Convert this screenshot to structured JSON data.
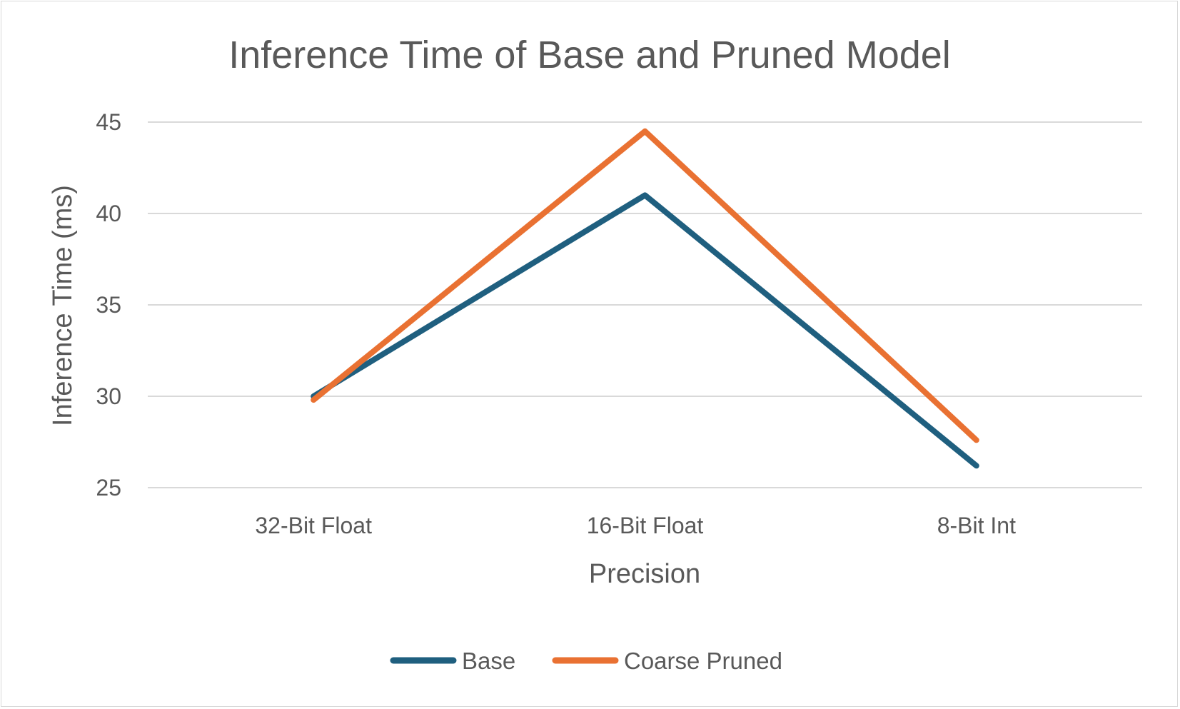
{
  "chart_data": {
    "type": "line",
    "title": "Inference Time of Base and Pruned Model",
    "xlabel": "Precision",
    "ylabel": "Inference Time (ms)",
    "categories": [
      "32-Bit Float",
      "16-Bit Float",
      "8-Bit Int"
    ],
    "yticks": [
      25,
      30,
      35,
      40,
      45
    ],
    "ylim": [
      25,
      45
    ],
    "grid": true,
    "legend_position": "bottom",
    "series": [
      {
        "name": "Base",
        "color": "#1f5f7f",
        "values": [
          30.0,
          41.0,
          26.2
        ]
      },
      {
        "name": "Coarse Pruned",
        "color": "#e97132",
        "values": [
          29.8,
          44.5,
          27.6
        ]
      }
    ]
  }
}
